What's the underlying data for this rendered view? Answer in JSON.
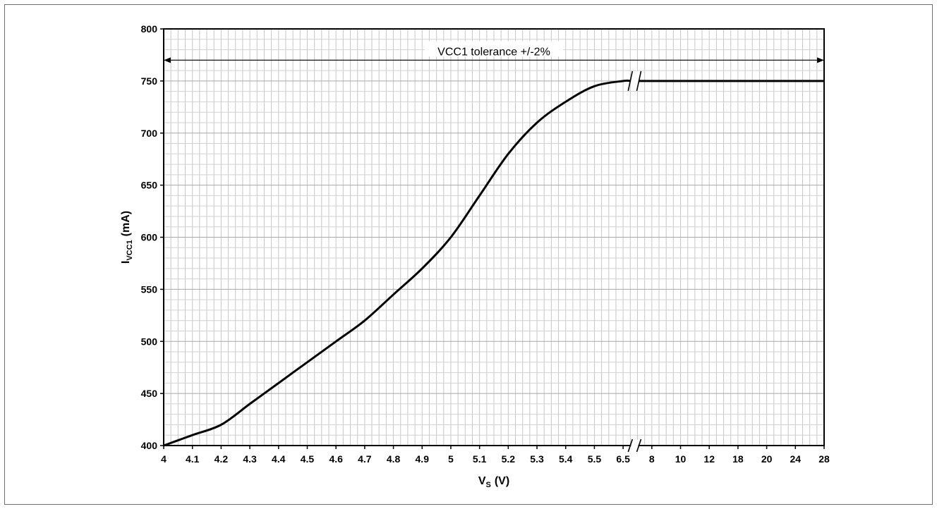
{
  "chart_data": {
    "type": "line",
    "title": "",
    "xlabel": "V",
    "xlabel_sub": "S",
    "xlabel_unit": "(V)",
    "ylabel": "I",
    "ylabel_sub": "VCC1",
    "ylabel_unit": "(mA)",
    "x_tick_labels": [
      "4",
      "4.1",
      "4.2",
      "4.3",
      "4.4",
      "4.5",
      "4.6",
      "4.7",
      "4.8",
      "4.9",
      "5",
      "5.1",
      "5.2",
      "5.3",
      "5.4",
      "5.5",
      "6.5",
      "8",
      "10",
      "12",
      "18",
      "20",
      "24",
      "28"
    ],
    "y_ticks": [
      400,
      450,
      500,
      550,
      600,
      650,
      700,
      750,
      800
    ],
    "ylim": [
      400,
      800
    ],
    "grid": true,
    "axis_break": "between 6.5 and 8",
    "series": [
      {
        "x": [
          "4",
          "4.1",
          "4.2",
          "4.3",
          "4.4",
          "4.5",
          "4.6",
          "4.7",
          "4.8",
          "4.9",
          "5",
          "5.1",
          "5.2",
          "5.3",
          "5.4",
          "5.5",
          "6.5",
          "8",
          "10",
          "12",
          "18",
          "20",
          "24",
          "28"
        ],
        "values": [
          400,
          410,
          420,
          440,
          460,
          480,
          500,
          520,
          545,
          570,
          600,
          640,
          680,
          710,
          730,
          745,
          750,
          750,
          750,
          750,
          750,
          750,
          750,
          750
        ]
      }
    ],
    "annotations": [
      {
        "text": "VCC1 tolerance +/-2%",
        "y": 770,
        "arrow": "double-headed",
        "x_from": "4",
        "x_to": "28"
      }
    ]
  }
}
